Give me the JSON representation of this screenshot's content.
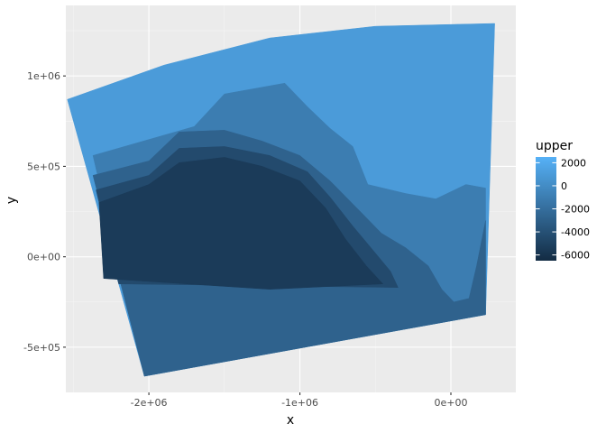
{
  "chart_data": {
    "type": "heatmap",
    "title": "",
    "xlabel": "x",
    "ylabel": "y",
    "xlim": [
      -2550000,
      430000
    ],
    "ylim": [
      -750000,
      1390000
    ],
    "x_ticks": [
      {
        "value": -2000000,
        "label": "-2e+06"
      },
      {
        "value": -1000000,
        "label": "-1e+06"
      },
      {
        "value": 0,
        "label": "0e+00"
      }
    ],
    "y_ticks": [
      {
        "value": -500000,
        "label": "-5e+05"
      },
      {
        "value": 0,
        "label": "0e+00"
      },
      {
        "value": 500000,
        "label": "5e+05"
      },
      {
        "value": 1000000,
        "label": "1e+06"
      }
    ],
    "grid": true,
    "legend": {
      "title": "upper",
      "position": "right",
      "min": -6500,
      "max": 2500,
      "breaks": [
        {
          "value": 2000,
          "label": "2000"
        },
        {
          "value": 0,
          "label": "0"
        },
        {
          "value": -2000,
          "label": "-2000"
        },
        {
          "value": -4000,
          "label": "-4000"
        },
        {
          "value": -6000,
          "label": "-6000"
        }
      ],
      "low_color": "#132B43",
      "high_color": "#56B1F7"
    },
    "colors": {
      "panel_background": "#ebebeb",
      "major_grid": "#ffffff",
      "minor_grid": "#f5f5f5"
    },
    "domain_outline": {
      "corners": [
        {
          "x": -2540000,
          "y": 870000
        },
        {
          "x": 290000,
          "y": 1290000
        },
        {
          "x": 230000,
          "y": -320000
        },
        {
          "x": -2030000,
          "y": -660000
        }
      ]
    },
    "zones": [
      {
        "level": 1000,
        "points": [
          [
            -2540000,
            870000
          ],
          [
            -1900000,
            1060000
          ],
          [
            -1200000,
            1210000
          ],
          [
            -500000,
            1275000
          ],
          [
            290000,
            1290000
          ],
          [
            230000,
            -320000
          ],
          [
            -2030000,
            -660000
          ]
        ]
      },
      {
        "level": -1000,
        "points": [
          [
            -2370000,
            560000
          ],
          [
            -1700000,
            720000
          ],
          [
            -1500000,
            900000
          ],
          [
            -1100000,
            960000
          ],
          [
            -950000,
            830000
          ],
          [
            -800000,
            710000
          ],
          [
            -650000,
            610000
          ],
          [
            -550000,
            400000
          ],
          [
            -300000,
            350000
          ],
          [
            -100000,
            320000
          ],
          [
            100000,
            400000
          ],
          [
            230000,
            380000
          ],
          [
            230000,
            -320000
          ],
          [
            -2030000,
            -660000
          ]
        ]
      },
      {
        "level": -2800,
        "points": [
          [
            -2370000,
            450000
          ],
          [
            -2000000,
            530000
          ],
          [
            -1800000,
            690000
          ],
          [
            -1500000,
            700000
          ],
          [
            -1250000,
            640000
          ],
          [
            -1000000,
            560000
          ],
          [
            -800000,
            420000
          ],
          [
            -600000,
            250000
          ],
          [
            -460000,
            130000
          ],
          [
            -300000,
            50000
          ],
          [
            -150000,
            -50000
          ],
          [
            -60000,
            -180000
          ],
          [
            20000,
            -250000
          ],
          [
            120000,
            -230000
          ],
          [
            170000,
            -50000
          ],
          [
            230000,
            200000
          ],
          [
            230000,
            -320000
          ],
          [
            -2030000,
            -660000
          ]
        ]
      },
      {
        "level": -4400,
        "points": [
          [
            -2350000,
            370000
          ],
          [
            -2000000,
            450000
          ],
          [
            -1800000,
            600000
          ],
          [
            -1500000,
            610000
          ],
          [
            -1200000,
            560000
          ],
          [
            -950000,
            470000
          ],
          [
            -800000,
            330000
          ],
          [
            -650000,
            170000
          ],
          [
            -500000,
            20000
          ],
          [
            -400000,
            -80000
          ],
          [
            -350000,
            -170000
          ],
          [
            -2200000,
            -150000
          ]
        ]
      },
      {
        "level": -5400,
        "points": [
          [
            -2330000,
            300000
          ],
          [
            -2000000,
            400000
          ],
          [
            -1800000,
            520000
          ],
          [
            -1500000,
            550000
          ],
          [
            -1250000,
            500000
          ],
          [
            -1000000,
            420000
          ],
          [
            -830000,
            270000
          ],
          [
            -700000,
            100000
          ],
          [
            -560000,
            -50000
          ],
          [
            -450000,
            -150000
          ],
          [
            -1200000,
            -180000
          ],
          [
            -2300000,
            -120000
          ]
        ]
      }
    ]
  }
}
